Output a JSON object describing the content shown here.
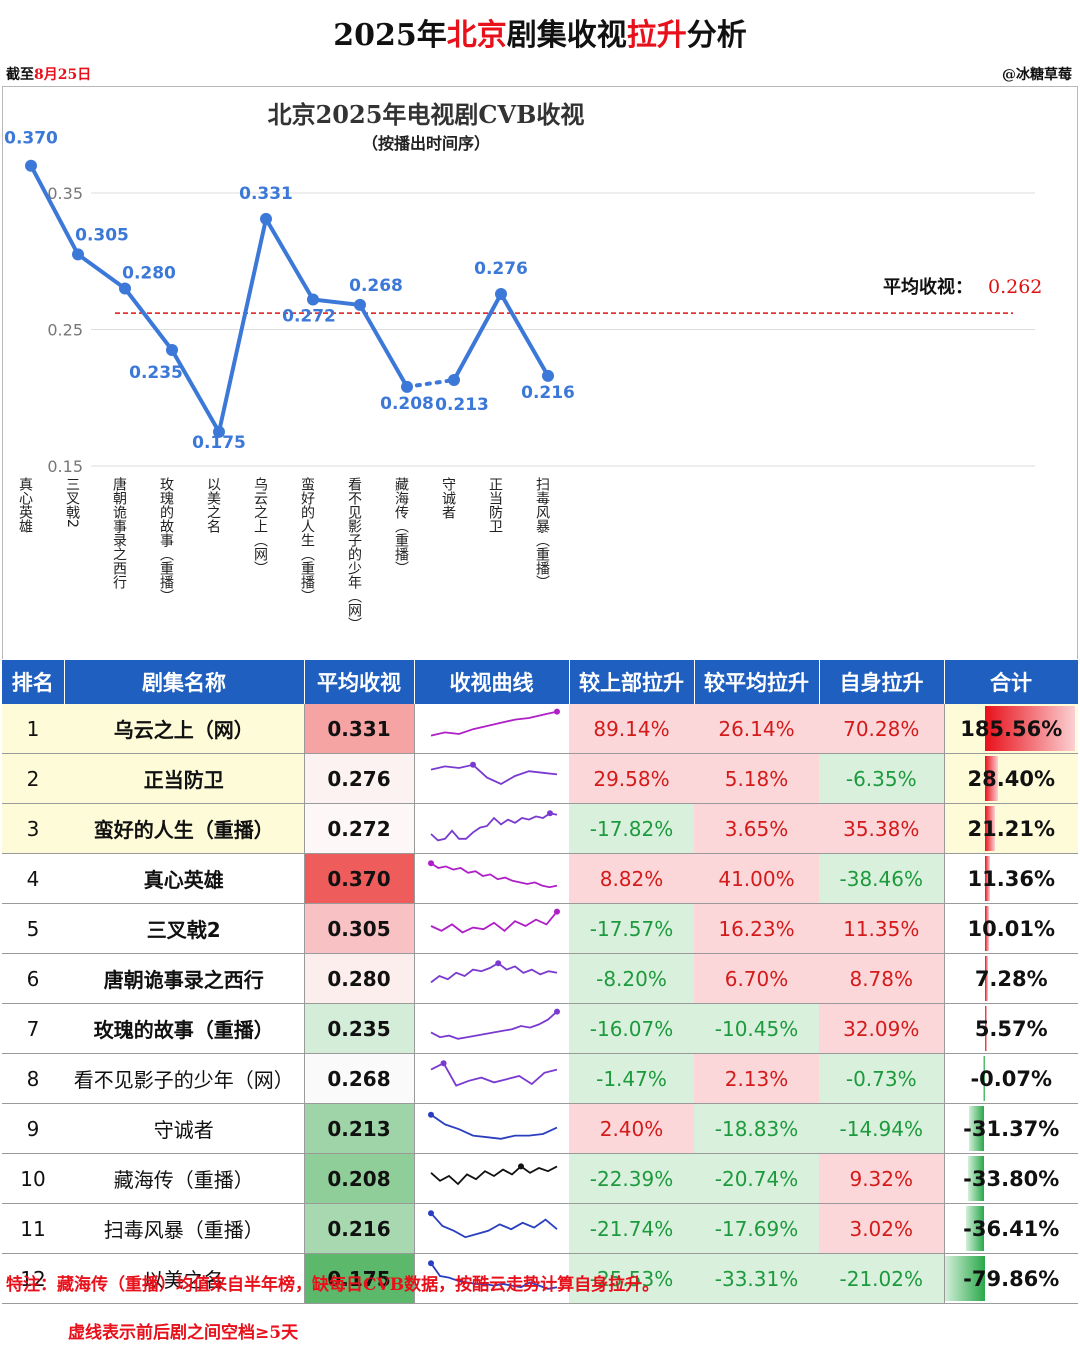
{
  "header": {
    "title_part1": "2025年",
    "title_part2": "北京",
    "title_part3": "剧集收视",
    "title_part4": "拉升",
    "title_part5": "分析",
    "asof_prefix": "截至",
    "asof_date": "8月25日",
    "author": "@冰糖草莓"
  },
  "chart_data": {
    "type": "line",
    "title": "北京2025年电视剧CVB收视",
    "subtitle": "（按播出时间序）",
    "categories": [
      "真心英雄",
      "三叉戟2",
      "唐朝诡事录之西行",
      "玫瑰的故事（重播）",
      "以美之名",
      "乌云之上（网）",
      "蛮好的人生（重播）",
      "看不见影子的少年（网）",
      "藏海传（重播）",
      "守诚者",
      "正当防卫",
      "扫毒风暴（重播）"
    ],
    "series": [
      {
        "values": [
          0.37,
          0.305,
          0.28,
          0.235,
          0.175,
          0.331,
          0.272,
          0.268,
          0.208,
          0.213,
          0.276,
          0.216
        ]
      }
    ],
    "value_labels": [
      "0.370",
      "0.305",
      "0.280",
      "0.235",
      "0.175",
      "0.331",
      "0.272",
      "0.268",
      "0.208",
      "0.213",
      "0.276",
      "0.216"
    ],
    "dotted_segment": [
      8,
      9
    ],
    "average": 0.262,
    "average_label": "平均收视：",
    "average_value": "0.262",
    "yticks": [
      "0.35",
      "0.25",
      "0.15"
    ],
    "ylim": [
      0.15,
      0.37
    ],
    "grid": true,
    "line_color": "#3b78d8",
    "avg_line_color": "#e01010"
  },
  "table": {
    "headers": [
      "排名",
      "剧集名称",
      "平均收视",
      "收视曲线",
      "较上部拉升",
      "较平均拉升",
      "自身拉升",
      "合计"
    ],
    "header_color": "#1f5fbf",
    "rows": [
      {
        "rank": "1",
        "name": "乌云之上（网）",
        "avg": "0.331",
        "prev": "89.14%",
        "vsavg": "26.14%",
        "self": "70.28%",
        "total": "185.56%",
        "total_num": 185.56,
        "bold": true,
        "hl": true,
        "avg_bg": "#f6a3a3",
        "prev_bg": "#fbd7d9",
        "vsavg_bg": "#fbd7d9",
        "self_bg": "#fbd7d9",
        "spark": [
          0.2,
          0.3,
          0.25,
          0.4,
          0.5,
          0.6,
          0.7,
          0.75,
          0.85,
          0.95
        ],
        "spark_color": "#b01ec8"
      },
      {
        "rank": "2",
        "name": "正当防卫",
        "avg": "0.276",
        "prev": "29.58%",
        "vsavg": "5.18%",
        "self": "-6.35%",
        "total": "28.40%",
        "total_num": 28.4,
        "bold": true,
        "hl": true,
        "avg_bg": "#fdf2f2",
        "prev_bg": "#fbd7d9",
        "vsavg_bg": "#fbd7d9",
        "self_bg": "#d9f0dc",
        "spark": [
          0.7,
          0.8,
          0.75,
          0.85,
          0.45,
          0.25,
          0.5,
          0.65,
          0.6,
          0.55
        ],
        "spark_color": "#7a3ad0"
      },
      {
        "rank": "3",
        "name": "蛮好的人生（重播）",
        "avg": "0.272",
        "prev": "-17.82%",
        "vsavg": "3.65%",
        "self": "35.38%",
        "total": "21.21%",
        "total_num": 21.21,
        "bold": true,
        "hl": true,
        "avg_bg": "#fdf7f7",
        "prev_bg": "#d9f0dc",
        "vsavg_bg": "#fbd7d9",
        "self_bg": "#fbd7d9",
        "spark": [
          0.25,
          0.05,
          0.1,
          0.35,
          0.1,
          0.1,
          0.3,
          0.45,
          0.5,
          0.75,
          0.55,
          0.7,
          0.6,
          0.75,
          0.7,
          0.8,
          0.75,
          0.9,
          0.85
        ],
        "spark_color": "#7a3ad0"
      },
      {
        "rank": "4",
        "name": "真心英雄",
        "avg": "0.370",
        "prev": "8.82%",
        "vsavg": "41.00%",
        "self": "-38.46%",
        "total": "11.36%",
        "total_num": 11.36,
        "bold": true,
        "hl": false,
        "avg_bg": "#ef5c5c",
        "prev_bg": "#fbd7d9",
        "vsavg_bg": "#fbd7d9",
        "self_bg": "#d9f0dc",
        "spark": [
          0.9,
          0.75,
          0.8,
          0.7,
          0.75,
          0.6,
          0.65,
          0.5,
          0.55,
          0.4,
          0.45,
          0.35,
          0.3,
          0.25,
          0.3,
          0.2,
          0.15,
          0.2
        ],
        "spark_color": "#b01ec8"
      },
      {
        "rank": "5",
        "name": "三叉戟2",
        "avg": "0.305",
        "prev": "-17.57%",
        "vsavg": "16.23%",
        "self": "11.35%",
        "total": "10.01%",
        "total_num": 10.01,
        "bold": true,
        "hl": false,
        "avg_bg": "#f8c2c4",
        "prev_bg": "#d9f0dc",
        "vsavg_bg": "#fbd7d9",
        "self_bg": "#fbd7d9",
        "spark": [
          0.5,
          0.35,
          0.55,
          0.3,
          0.45,
          0.4,
          0.6,
          0.35,
          0.65,
          0.5,
          0.7,
          0.55,
          0.95
        ],
        "spark_color": "#b01ec8"
      },
      {
        "rank": "6",
        "name": "唐朝诡事录之西行",
        "avg": "0.280",
        "prev": "-8.20%",
        "vsavg": "6.70%",
        "self": "8.78%",
        "total": "7.28%",
        "total_num": 7.28,
        "bold": true,
        "hl": false,
        "avg_bg": "#fdeeee",
        "prev_bg": "#d9f0dc",
        "vsavg_bg": "#fbd7d9",
        "self_bg": "#fbd7d9",
        "spark": [
          0.3,
          0.5,
          0.4,
          0.6,
          0.5,
          0.7,
          0.65,
          0.75,
          0.9,
          0.7,
          0.8,
          0.6,
          0.7,
          0.55,
          0.65,
          0.6
        ],
        "spark_color": "#7a3ad0"
      },
      {
        "rank": "7",
        "name": "玫瑰的故事（重播）",
        "avg": "0.235",
        "prev": "-16.07%",
        "vsavg": "-10.45%",
        "self": "32.09%",
        "total": "5.57%",
        "total_num": 5.57,
        "bold": true,
        "hl": false,
        "avg_bg": "#d4edd8",
        "prev_bg": "#d9f0dc",
        "vsavg_bg": "#d9f0dc",
        "self_bg": "#fbd7d9",
        "spark": [
          0.3,
          0.15,
          0.2,
          0.1,
          0.15,
          0.2,
          0.25,
          0.3,
          0.35,
          0.4,
          0.5,
          0.45,
          0.55,
          0.7,
          0.95
        ],
        "spark_color": "#7a3ad0"
      },
      {
        "rank": "8",
        "name": "看不见影子的少年（网）",
        "avg": "0.268",
        "prev": "-1.47%",
        "vsavg": "2.13%",
        "self": "-0.73%",
        "total": "-0.07%",
        "total_num": -0.07,
        "bold": false,
        "hl": false,
        "avg_bg": "#fafafa",
        "prev_bg": "#d9f0dc",
        "vsavg_bg": "#fbd7d9",
        "self_bg": "#d9f0dc",
        "spark": [
          0.7,
          0.9,
          0.2,
          0.35,
          0.45,
          0.3,
          0.4,
          0.5,
          0.25,
          0.6,
          0.7
        ],
        "spark_color": "#7a3ad0"
      },
      {
        "rank": "9",
        "name": "守诚者",
        "avg": "0.213",
        "prev": "2.40%",
        "vsavg": "-18.83%",
        "self": "-14.94%",
        "total": "-31.37%",
        "total_num": -31.37,
        "bold": false,
        "hl": false,
        "avg_bg": "#9fd4a8",
        "prev_bg": "#fbd7d9",
        "vsavg_bg": "#d9f0dc",
        "self_bg": "#d9f0dc",
        "spark": [
          0.85,
          0.55,
          0.4,
          0.2,
          0.15,
          0.1,
          0.2,
          0.2,
          0.25,
          0.45
        ],
        "spark_color": "#2a3ec0"
      },
      {
        "rank": "10",
        "name": "藏海传（重播）",
        "avg": "0.208",
        "prev": "-22.39%",
        "vsavg": "-20.74%",
        "self": "9.32%",
        "total": "-33.80%",
        "total_num": -33.8,
        "bold": false,
        "hl": false,
        "avg_bg": "#8fcd99",
        "prev_bg": "#d9f0dc",
        "vsavg_bg": "#d9f0dc",
        "self_bg": "#fbd7d9",
        "spark": [
          0.6,
          0.35,
          0.5,
          0.25,
          0.55,
          0.4,
          0.65,
          0.5,
          0.7,
          0.55,
          0.8,
          0.6,
          0.75,
          0.65,
          0.8
        ],
        "spark_color": "#111111"
      },
      {
        "rank": "11",
        "name": "扫毒风暴（重播）",
        "avg": "0.216",
        "prev": "-21.74%",
        "vsavg": "-17.69%",
        "self": "3.02%",
        "total": "-36.41%",
        "total_num": -36.41,
        "bold": false,
        "hl": false,
        "avg_bg": "#a7d8af",
        "prev_bg": "#d9f0dc",
        "vsavg_bg": "#d9f0dc",
        "self_bg": "#fbd7d9",
        "spark": [
          0.9,
          0.5,
          0.35,
          0.15,
          0.25,
          0.35,
          0.55,
          0.4,
          0.6,
          0.45,
          0.7,
          0.4
        ],
        "spark_color": "#2a3ec0"
      },
      {
        "rank": "12",
        "name": "以美之名",
        "avg": "0.175",
        "prev": "-25.53%",
        "vsavg": "-33.31%",
        "self": "-21.02%",
        "total": "-79.86%",
        "total_num": -79.86,
        "bold": false,
        "hl": false,
        "avg_bg": "#5cb86a",
        "prev_bg": "#d9f0dc",
        "vsavg_bg": "#d9f0dc",
        "self_bg": "#d9f0dc",
        "spark": [
          0.9,
          0.5,
          0.45,
          0.35,
          0.3,
          0.25,
          0.25,
          0.2,
          0.25,
          0.2,
          0.15,
          0.3,
          0.2,
          0.1,
          0.15
        ],
        "spark_color": "#2a3ec0"
      }
    ]
  },
  "notes": {
    "note1": "特注：藏海传（重播）均值来自半年榜，缺每日CVB数据，按酷云走势计算自身拉升。",
    "note2": "虚线表示前后剧之间空档≥5天"
  }
}
